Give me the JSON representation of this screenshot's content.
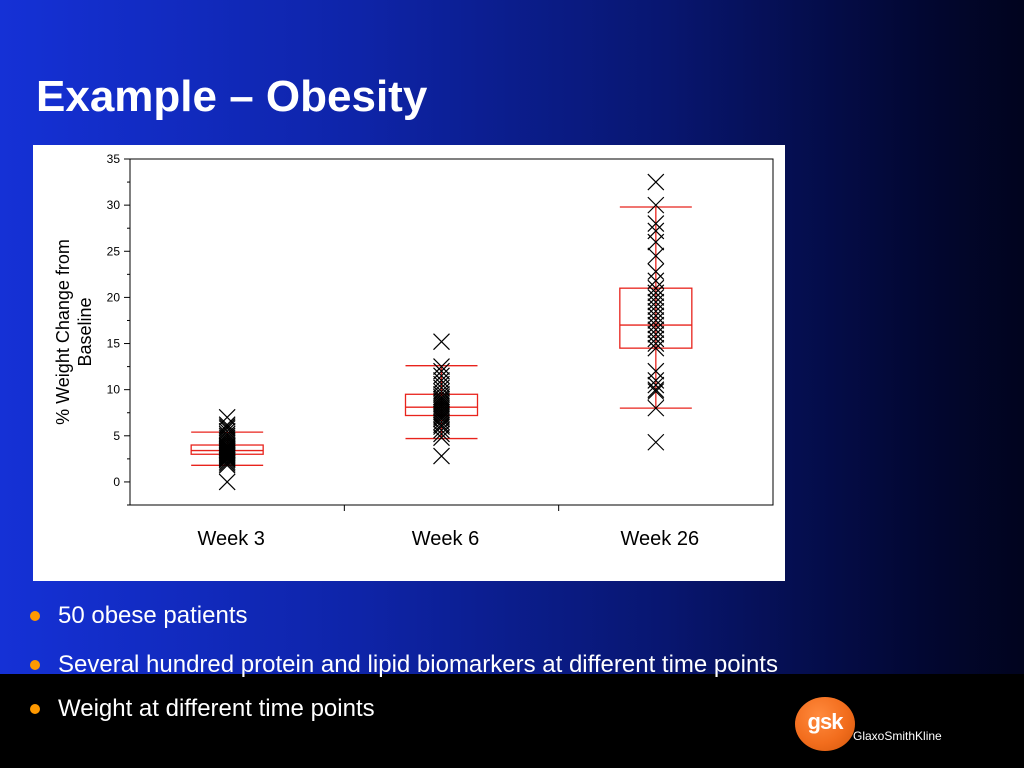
{
  "slide": {
    "title": "Example – Obesity",
    "bullets": [
      "50 obese patients",
      "Several hundred protein and lipid biomarkers at different time points",
      "Weight at different time points"
    ],
    "logo": {
      "badge_text": "gsk",
      "company": "GlaxoSmithKline",
      "badge_color": "#f26d1d"
    },
    "bullet_color": "#ff9900"
  },
  "chart_data": {
    "type": "box",
    "title": "",
    "xlabel": "",
    "ylabel": "% Weight Change from Baseline",
    "ylabel_lines": [
      "% Weight Change from",
      "Baseline"
    ],
    "ylim": [
      -2.5,
      35
    ],
    "yticks": [
      0,
      5,
      10,
      15,
      20,
      25,
      30,
      35
    ],
    "categories": [
      "Week 3",
      "Week 6",
      "Week 26"
    ],
    "box_color": "#e8231c",
    "marker": "x",
    "boxes": [
      {
        "category": "Week 3",
        "whisker_low": 1.8,
        "q1": 3.0,
        "median": 3.4,
        "q3": 4.0,
        "whisker_high": 5.4
      },
      {
        "category": "Week 6",
        "whisker_low": 4.7,
        "q1": 7.2,
        "median": 8.1,
        "q3": 9.5,
        "whisker_high": 12.6
      },
      {
        "category": "Week 26",
        "whisker_low": 8.0,
        "q1": 14.5,
        "median": 17.0,
        "q3": 21.0,
        "whisker_high": 29.8
      }
    ],
    "points": [
      {
        "category": "Week 3",
        "values": [
          7.0,
          6.2,
          6.0,
          5.8,
          5.5,
          5.2,
          5.0,
          4.8,
          4.6,
          4.4,
          4.2,
          4.0,
          3.9,
          3.8,
          3.7,
          3.6,
          3.5,
          3.4,
          3.3,
          3.2,
          3.1,
          3.0,
          2.9,
          2.8,
          2.7,
          2.6,
          2.5,
          2.4,
          2.2,
          2.0,
          1.8,
          0.0
        ]
      },
      {
        "category": "Week 6",
        "values": [
          15.2,
          12.5,
          12.0,
          11.5,
          11.0,
          10.6,
          10.2,
          9.8,
          9.5,
          9.2,
          9.0,
          8.8,
          8.6,
          8.4,
          8.2,
          8.0,
          7.8,
          7.6,
          7.4,
          7.2,
          7.0,
          6.8,
          6.5,
          6.2,
          6.0,
          5.6,
          5.2,
          4.8,
          2.8
        ]
      },
      {
        "category": "Week 26",
        "values": [
          32.5,
          30.0,
          28.0,
          27.2,
          26.0,
          24.5,
          22.8,
          21.8,
          21.0,
          20.5,
          20.0,
          19.5,
          19.0,
          18.5,
          18.0,
          17.5,
          17.0,
          16.5,
          16.0,
          15.5,
          15.0,
          14.5,
          12.0,
          11.0,
          10.5,
          10.0,
          9.8,
          8.0,
          4.3
        ]
      }
    ]
  }
}
